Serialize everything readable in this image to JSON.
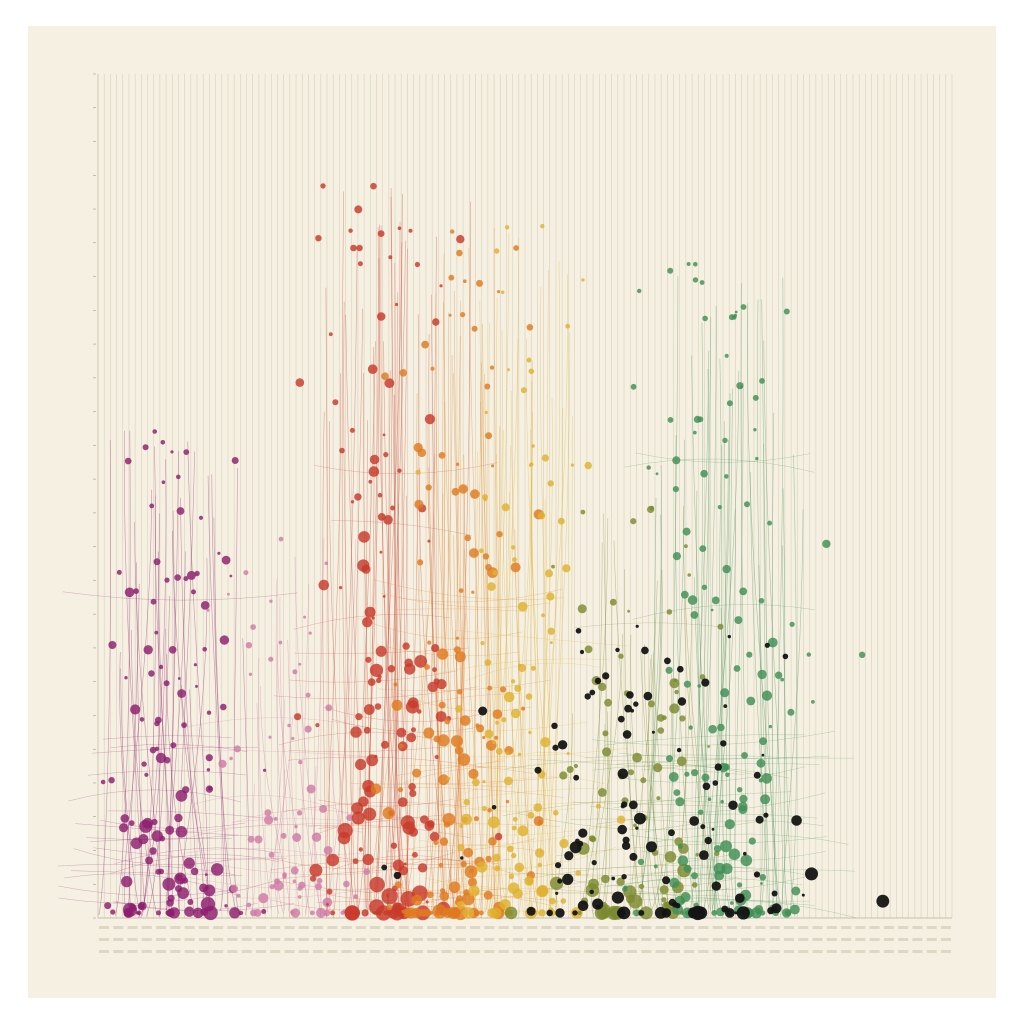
{
  "colors": {
    "page": "#ffffff",
    "paper": "#f5f0e1",
    "gridline": "#cfc6b0",
    "magenta": "#8e1d6f",
    "pink": "#d07aa6",
    "red": "#c8392b",
    "orange": "#e07a1f",
    "yellow": "#e0b12e",
    "olive": "#7c8a30",
    "green": "#3f8f55",
    "black": "#141414"
  },
  "chart_data": {
    "type": "scatter",
    "title": "",
    "xlabel": "",
    "ylabel": "",
    "grid": "vertical",
    "x_range": [
      0,
      100
    ],
    "y_range": [
      0,
      100
    ],
    "y_ticks": [
      "",
      "",
      "",
      "",
      "",
      "",
      "",
      "",
      "",
      "",
      "",
      "",
      "",
      "",
      "",
      "",
      "",
      "",
      "",
      "",
      "",
      "",
      "",
      "",
      "",
      ""
    ],
    "x_ticks": [
      "",
      "",
      "",
      "",
      "",
      "",
      "",
      "",
      "",
      "",
      "",
      "",
      "",
      "",
      "",
      "",
      "",
      ""
    ],
    "clusters": [
      {
        "color": "magenta",
        "center": 9,
        "spread": 8,
        "peak": 58,
        "count": 130,
        "max_size": 6
      },
      {
        "color": "pink",
        "center": 22,
        "spread": 7,
        "peak": 45,
        "count": 70,
        "max_size": 4
      },
      {
        "color": "red",
        "center": 34,
        "spread": 8,
        "peak": 88,
        "count": 150,
        "max_size": 7
      },
      {
        "color": "orange",
        "center": 42,
        "spread": 7,
        "peak": 82,
        "count": 130,
        "max_size": 6
      },
      {
        "color": "yellow",
        "center": 50,
        "spread": 7,
        "peak": 82,
        "count": 110,
        "max_size": 5
      },
      {
        "color": "olive",
        "center": 63,
        "spread": 9,
        "peak": 50,
        "count": 90,
        "max_size": 6
      },
      {
        "color": "green",
        "center": 73,
        "spread": 9,
        "peak": 78,
        "count": 150,
        "max_size": 5
      },
      {
        "color": "black",
        "center": 64,
        "spread": 18,
        "peak": 35,
        "count": 110,
        "max_size": 6
      }
    ]
  }
}
